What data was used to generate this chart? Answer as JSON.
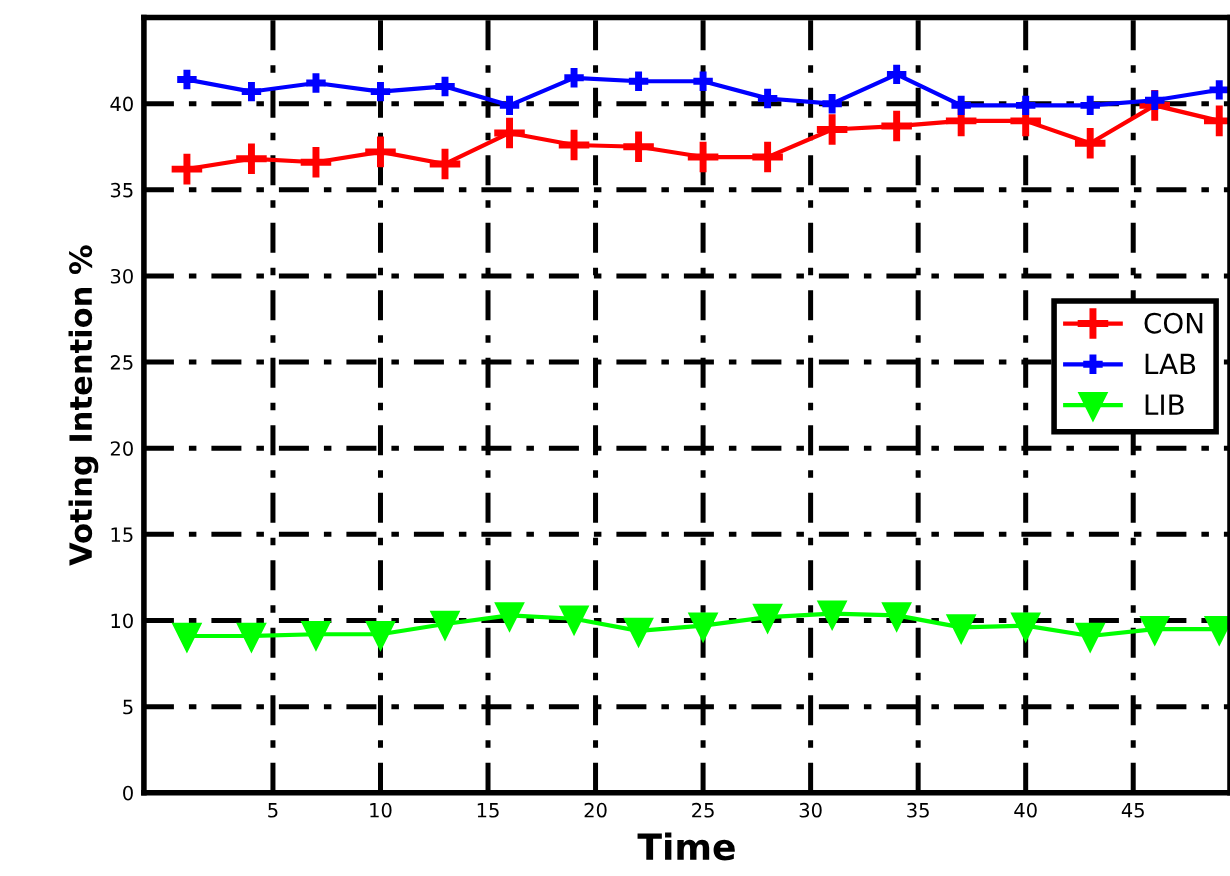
{
  "chart_data": {
    "type": "line",
    "xlabel": "Time",
    "ylabel": "Voting Intention %",
    "x": [
      1,
      4,
      7,
      10,
      13,
      16,
      19,
      22,
      25,
      28,
      31,
      34,
      37,
      40,
      43,
      46,
      49
    ],
    "series": [
      {
        "name": "CON",
        "color": "#ff0000",
        "marker": "cross",
        "values": [
          36.2,
          36.8,
          36.6,
          37.2,
          36.5,
          38.3,
          37.6,
          37.5,
          36.9,
          36.9,
          38.5,
          38.7,
          39.0,
          39.0,
          37.7,
          39.9,
          39.0
        ]
      },
      {
        "name": "LAB",
        "color": "#0000ff",
        "marker": "cross",
        "values": [
          41.4,
          40.7,
          41.2,
          40.7,
          41.0,
          39.9,
          41.5,
          41.3,
          41.3,
          40.3,
          40.0,
          41.7,
          39.9,
          39.9,
          39.9,
          40.2,
          40.8
        ]
      },
      {
        "name": "LIB",
        "color": "#00ff00",
        "marker": "triangle",
        "values": [
          9.1,
          9.1,
          9.2,
          9.2,
          9.8,
          10.3,
          10.1,
          9.4,
          9.7,
          10.2,
          10.4,
          10.3,
          9.6,
          9.7,
          9.1,
          9.5,
          9.5
        ]
      }
    ],
    "xlim": [
      -1,
      49.5
    ],
    "ylim": [
      0,
      45
    ],
    "xticks": [
      5,
      10,
      15,
      20,
      25,
      30,
      35,
      40,
      45
    ],
    "yticks": [
      0,
      5,
      10,
      15,
      20,
      25,
      30,
      35,
      40
    ],
    "grid": true,
    "legend": "right",
    "line_style": "solid"
  }
}
